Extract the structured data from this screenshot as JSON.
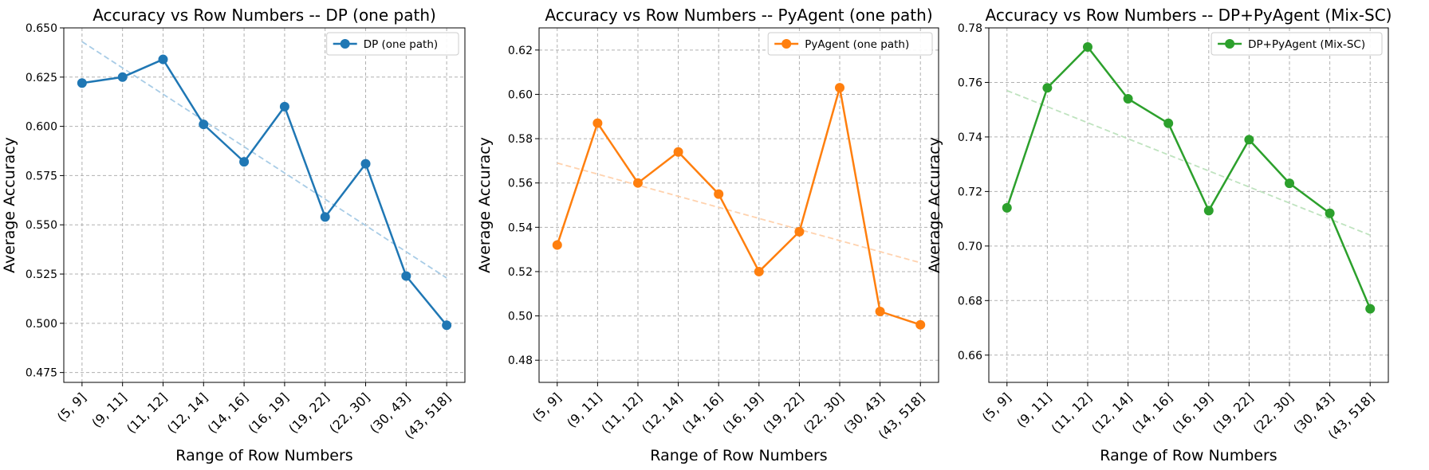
{
  "chart_data": [
    {
      "type": "line",
      "title": "Accuracy vs Row Numbers -- DP (one path)",
      "xlabel": "Range of Row Numbers",
      "ylabel": "Average Accuracy",
      "categories": [
        "(5, 9]",
        "(9, 11]",
        "(11, 12]",
        "(12, 14]",
        "(14, 16]",
        "(16, 19]",
        "(19, 22]",
        "(22, 30]",
        "(30, 43]",
        "(43, 518]"
      ],
      "ylim": [
        0.47,
        0.65
      ],
      "yticks": [
        0.475,
        0.5,
        0.525,
        0.55,
        0.575,
        0.6,
        0.625,
        0.65
      ],
      "ytick_labels": [
        "0.475",
        "0.500",
        "0.525",
        "0.550",
        "0.575",
        "0.600",
        "0.625",
        "0.650"
      ],
      "grid": true,
      "legend": "top-right",
      "color": "#1f77b4",
      "trend_color": "#a8cce6",
      "series": [
        {
          "name": "DP (one path)",
          "values": [
            0.622,
            0.625,
            0.634,
            0.601,
            0.582,
            0.61,
            0.554,
            0.581,
            0.524,
            0.499
          ]
        }
      ],
      "trend": [
        0.643,
        0.523
      ]
    },
    {
      "type": "line",
      "title": "Accuracy vs Row Numbers -- PyAgent (one path)",
      "xlabel": "Range of Row Numbers",
      "ylabel": "Average Accuracy",
      "categories": [
        "(5, 9]",
        "(9, 11]",
        "(11, 12]",
        "(12, 14]",
        "(14, 16]",
        "(16, 19]",
        "(19, 22]",
        "(22, 30]",
        "(30, 43]",
        "(43, 518]"
      ],
      "ylim": [
        0.47,
        0.63
      ],
      "yticks": [
        0.48,
        0.5,
        0.52,
        0.54,
        0.56,
        0.58,
        0.6,
        0.62
      ],
      "ytick_labels": [
        "0.48",
        "0.50",
        "0.52",
        "0.54",
        "0.56",
        "0.58",
        "0.60",
        "0.62"
      ],
      "grid": true,
      "legend": "top-right",
      "color": "#ff7f0e",
      "trend_color": "#ffd2ae",
      "series": [
        {
          "name": "PyAgent (one path)",
          "values": [
            0.532,
            0.587,
            0.56,
            0.574,
            0.555,
            0.52,
            0.538,
            0.603,
            0.502,
            0.496
          ]
        }
      ],
      "trend": [
        0.569,
        0.524
      ]
    },
    {
      "type": "line",
      "title": "Accuracy vs Row Numbers -- DP+PyAgent (Mix-SC)",
      "xlabel": "Range of Row Numbers",
      "ylabel": "Average Accuracy",
      "categories": [
        "(5, 9]",
        "(9, 11]",
        "(11, 12]",
        "(12, 14]",
        "(14, 16]",
        "(16, 19]",
        "(19, 22]",
        "(22, 30]",
        "(30, 43]",
        "(43, 518]"
      ],
      "ylim": [
        0.65,
        0.78
      ],
      "yticks": [
        0.66,
        0.68,
        0.7,
        0.72,
        0.74,
        0.76,
        0.78
      ],
      "ytick_labels": [
        "0.66",
        "0.68",
        "0.70",
        "0.72",
        "0.74",
        "0.76",
        "0.78"
      ],
      "grid": true,
      "legend": "top-right",
      "color": "#2ca02c",
      "trend_color": "#bfe3bf",
      "series": [
        {
          "name": "DP+PyAgent (Mix-SC)",
          "values": [
            0.714,
            0.758,
            0.773,
            0.754,
            0.745,
            0.713,
            0.739,
            0.723,
            0.712,
            0.677
          ]
        }
      ],
      "trend": [
        0.757,
        0.704
      ]
    }
  ]
}
